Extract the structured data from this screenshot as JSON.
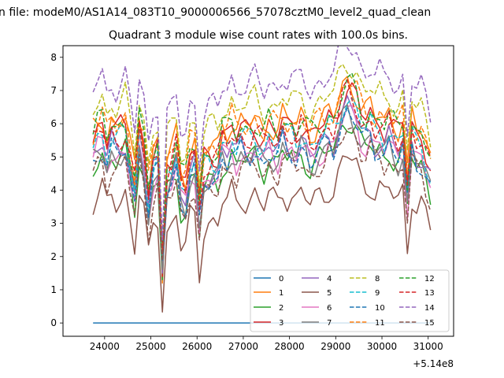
{
  "chart_data": {
    "type": "line",
    "suptitle": "n file: modeM0/AS1A14_083T10_9000006566_57078cztM0_level2_quad_clean",
    "title": "Quadrant 3 module wise count rates with 100.0s bins.",
    "xlabel": "",
    "ylabel": "",
    "x_offset_label": "+5.14e8",
    "xlim": [
      23100,
      31550
    ],
    "ylim": [
      -0.4,
      8.35
    ],
    "x_ticks": [
      24000,
      25000,
      26000,
      27000,
      28000,
      29000,
      30000,
      31000
    ],
    "x_tick_labels": [
      "24000",
      "25000",
      "26000",
      "27000",
      "28000",
      "29000",
      "30000",
      "31000"
    ],
    "y_ticks": [
      0,
      1,
      2,
      3,
      4,
      5,
      6,
      7,
      8
    ],
    "y_tick_labels": [
      "0",
      "1",
      "2",
      "3",
      "4",
      "5",
      "6",
      "7",
      "8"
    ],
    "x_start": 23750,
    "x_step": 100,
    "legend_position": "lower-right",
    "series": [
      {
        "name": "0",
        "color": "#1f77b4",
        "dash": "solid",
        "values": []
      },
      {
        "name": "1",
        "color": "#ff7f0e",
        "dash": "solid",
        "values": []
      },
      {
        "name": "2",
        "color": "#2ca02c",
        "dash": "solid",
        "values": []
      },
      {
        "name": "3",
        "color": "#d62728",
        "dash": "solid",
        "values": []
      },
      {
        "name": "4",
        "color": "#9467bd",
        "dash": "solid",
        "values": []
      },
      {
        "name": "5",
        "color": "#8c564b",
        "dash": "solid",
        "values": []
      },
      {
        "name": "6",
        "color": "#e377c2",
        "dash": "solid",
        "values": []
      },
      {
        "name": "7",
        "color": "#7f7f7f",
        "dash": "solid",
        "values": []
      },
      {
        "name": "8",
        "color": "#bcbd22",
        "dash": "dashed",
        "values": []
      },
      {
        "name": "9",
        "color": "#17becf",
        "dash": "dashed",
        "values": []
      },
      {
        "name": "10",
        "color": "#1f77b4",
        "dash": "dashed",
        "values": []
      },
      {
        "name": "11",
        "color": "#ff7f0e",
        "dash": "dashed",
        "values": []
      },
      {
        "name": "12",
        "color": "#2ca02c",
        "dash": "dashed",
        "values": []
      },
      {
        "name": "13",
        "color": "#d62728",
        "dash": "dashed",
        "values": []
      },
      {
        "name": "14",
        "color": "#9467bd",
        "dash": "dashed",
        "values": []
      },
      {
        "name": "15",
        "color": "#8c564b",
        "dash": "dashed",
        "values": []
      }
    ]
  }
}
